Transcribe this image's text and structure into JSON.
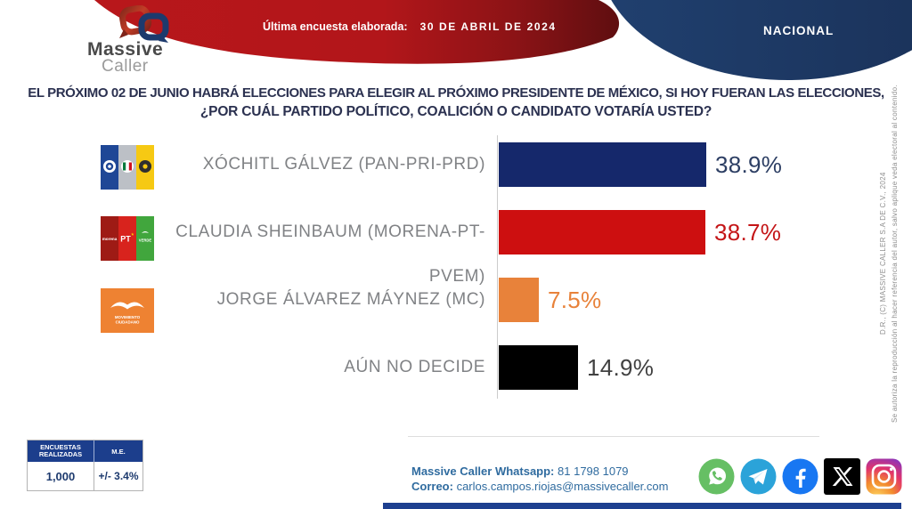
{
  "brand": {
    "name_line1": "Massive",
    "name_line2": "Caller"
  },
  "header": {
    "last_poll_label": "Última encuesta elaborada:",
    "last_poll_date": "30 DE ABRIL DE 2024",
    "region_badge": "NACIONAL",
    "colors": {
      "banner_red": "#b2161a",
      "banner_red_dark": "#5f0e10",
      "badge_navy": "#1d3a6d"
    }
  },
  "question": {
    "line1": "EL PRÓXIMO 02 DE JUNIO HABRÁ ELECCIONES PARA ELEGIR AL PRÓXIMO PRESIDENTE DE MÉXICO, SI HOY FUERAN LAS ELECCIONES,",
    "line2": "¿POR CUÁL PARTIDO POLÍTICO, COALICIÓN O CANDIDATO VOTARÍA USTED?"
  },
  "chart_data": {
    "type": "bar",
    "orientation": "horizontal",
    "categories": [
      "XÓCHITL GÁLVEZ (PAN-PRI-PRD)",
      "CLAUDIA SHEINBAUM (MORENA-PT-PVEM)",
      "JORGE ÁLVAREZ MÁYNEZ (MC)",
      "AÚN NO DECIDE"
    ],
    "values": [
      38.9,
      38.7,
      7.5,
      14.9
    ],
    "value_labels": [
      "38.9%",
      "38.7%",
      "7.5%",
      "14.9%"
    ],
    "bar_colors": [
      "#15286b",
      "#cd0f10",
      "#e8823a",
      "#000000"
    ],
    "label_colors": [
      "#2c3e63",
      "#c41517",
      "#e8823a",
      "#414141"
    ],
    "party_logos": [
      "pan-pri-prd",
      "morena-pt-pvem",
      "movimiento-ciudadano",
      null
    ],
    "xlim": [
      0,
      45
    ],
    "grid": false,
    "legend": "none"
  },
  "stats_table": {
    "header_col1_line1": "ENCUESTAS",
    "header_col1_line2": "REALIZADAS",
    "header_col2": "M.E.",
    "value_col1": "1,000",
    "value_col2": "+/- 3.4%"
  },
  "contact": {
    "whatsapp_label": "Massive Caller Whatsapp:",
    "whatsapp_number": "81 1798 1079",
    "email_label": "Correo:",
    "email": "carlos.campos.riojas@massivecaller.com"
  },
  "social": {
    "icons": [
      "whatsapp",
      "telegram",
      "facebook",
      "x",
      "instagram"
    ]
  },
  "legal": {
    "copyright": "D.R., (C) MASSIVE CALLER S.A DE C.V., 2024",
    "notice": "Se autoriza la reproducción al hacer referencia del autor, salvo aplique veda electoral al contenido."
  }
}
